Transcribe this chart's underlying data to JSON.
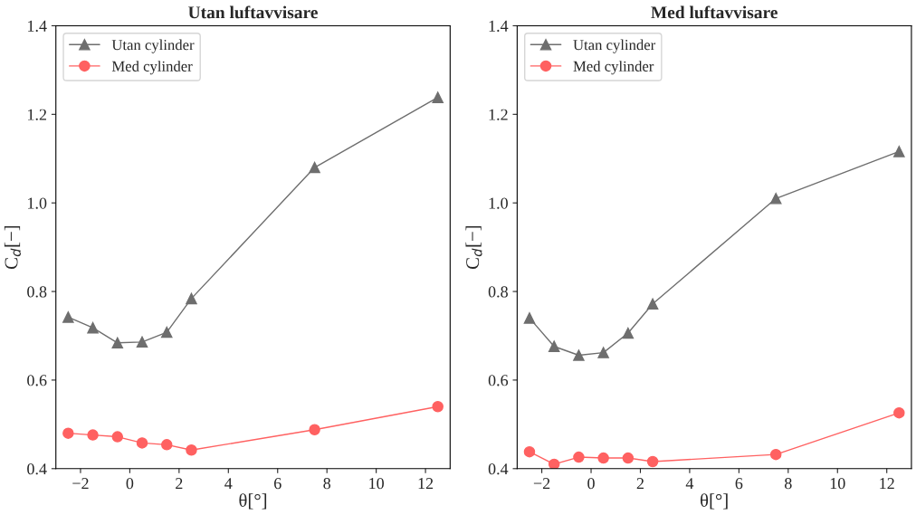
{
  "chart_data": [
    {
      "type": "line",
      "title": "Utan luftavvisare",
      "xlabel": "θ[°]",
      "ylabel": "C$_{d}$[−]",
      "x": [
        -2.5,
        -1.5,
        -0.5,
        0.5,
        1.5,
        2.5,
        7.5,
        12.5
      ],
      "series": [
        {
          "name": "Utan cylinder",
          "color": "#6e6e6e",
          "marker": "triangle",
          "values": [
            0.742,
            0.718,
            0.684,
            0.686,
            0.708,
            0.784,
            1.08,
            1.238
          ]
        },
        {
          "name": "Med cylinder",
          "color": "#ff6161",
          "marker": "circle",
          "values": [
            0.48,
            0.476,
            0.472,
            0.458,
            0.454,
            0.442,
            0.488,
            0.54
          ]
        }
      ],
      "xlim": [
        -3.0,
        13.0
      ],
      "ylim": [
        0.4,
        1.4
      ],
      "xticks": [
        {
          "value": -2,
          "label": "−2"
        },
        0,
        2,
        4,
        6,
        8,
        10,
        12
      ],
      "yticks": [
        0.4,
        0.6,
        0.8,
        {
          "value": 1.0,
          "label": "1.0"
        },
        1.2,
        1.4
      ],
      "grid": false,
      "legend": "top left",
      "line_style": "solid"
    },
    {
      "type": "line",
      "title": "Med luftavvisare",
      "xlabel": "θ[°]",
      "ylabel": "C$_{d}$[−]",
      "x": [
        -2.5,
        -1.5,
        -0.5,
        0.5,
        1.5,
        2.5,
        7.5,
        12.5
      ],
      "series": [
        {
          "name": "Utan cylinder",
          "color": "#6e6e6e",
          "marker": "triangle",
          "values": [
            0.74,
            0.676,
            0.656,
            0.662,
            0.706,
            0.772,
            1.01,
            1.116
          ]
        },
        {
          "name": "Med cylinder",
          "color": "#ff6161",
          "marker": "circle",
          "values": [
            0.438,
            0.41,
            0.426,
            0.424,
            0.424,
            0.416,
            0.432,
            0.526
          ]
        }
      ],
      "xlim": [
        -3.0,
        13.0
      ],
      "ylim": [
        0.4,
        1.4
      ],
      "xticks": [
        {
          "value": -2,
          "label": "−2"
        },
        0,
        2,
        4,
        6,
        8,
        10,
        12
      ],
      "yticks": [
        0.4,
        0.6,
        0.8,
        {
          "value": 1.0,
          "label": "1.0"
        },
        1.2,
        1.4
      ],
      "grid": false,
      "legend": "top left",
      "line_style": "solid"
    }
  ]
}
